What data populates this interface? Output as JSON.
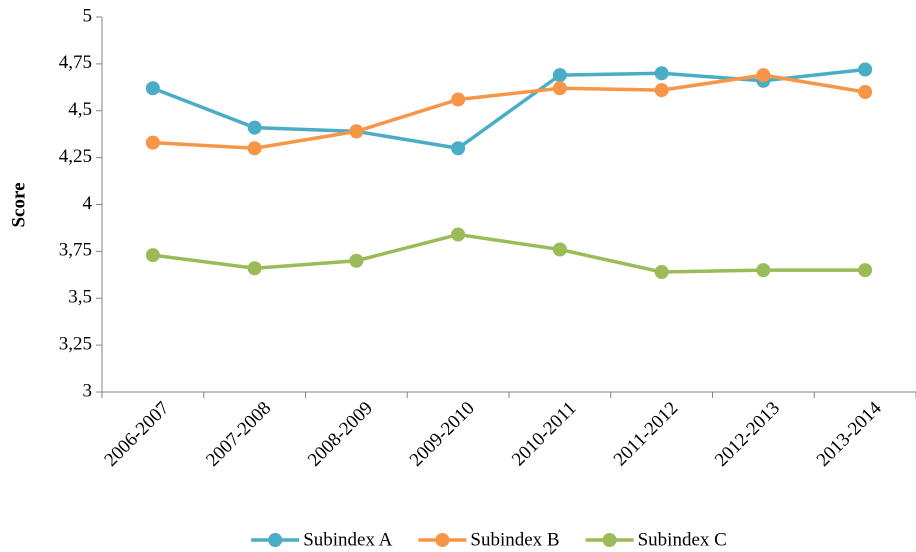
{
  "chart_data": {
    "type": "line",
    "y_label": "Score",
    "categories": [
      "2006-2007",
      "2007-2008",
      "2008-2009",
      "2009-2010",
      "2010-2011",
      "2011-2012",
      "2012-2013",
      "2013-2014"
    ],
    "series": [
      {
        "name": "Subindex A",
        "color": "#4bacc6",
        "values": [
          4.62,
          4.41,
          4.39,
          4.3,
          4.69,
          4.7,
          4.66,
          4.72
        ]
      },
      {
        "name": "Subindex B",
        "color": "#f79646",
        "values": [
          4.33,
          4.3,
          4.39,
          4.56,
          4.62,
          4.61,
          4.69,
          4.6
        ]
      },
      {
        "name": "Subindex C",
        "color": "#9bbb59",
        "values": [
          3.73,
          3.66,
          3.7,
          3.84,
          3.76,
          3.64,
          3.65,
          3.65
        ]
      }
    ],
    "ylim": [
      3,
      5
    ],
    "yticks": [
      3,
      {
        "value": 3.25,
        "label": "3,25"
      },
      {
        "value": 3.5,
        "label": "3,5"
      },
      {
        "value": 3.75,
        "label": "3,75"
      },
      4,
      {
        "value": 4.25,
        "label": "4,25"
      },
      {
        "value": 4.5,
        "label": "4,5"
      },
      {
        "value": 4.75,
        "label": "4,75"
      },
      5
    ],
    "grid": false,
    "legend": "bottom"
  }
}
